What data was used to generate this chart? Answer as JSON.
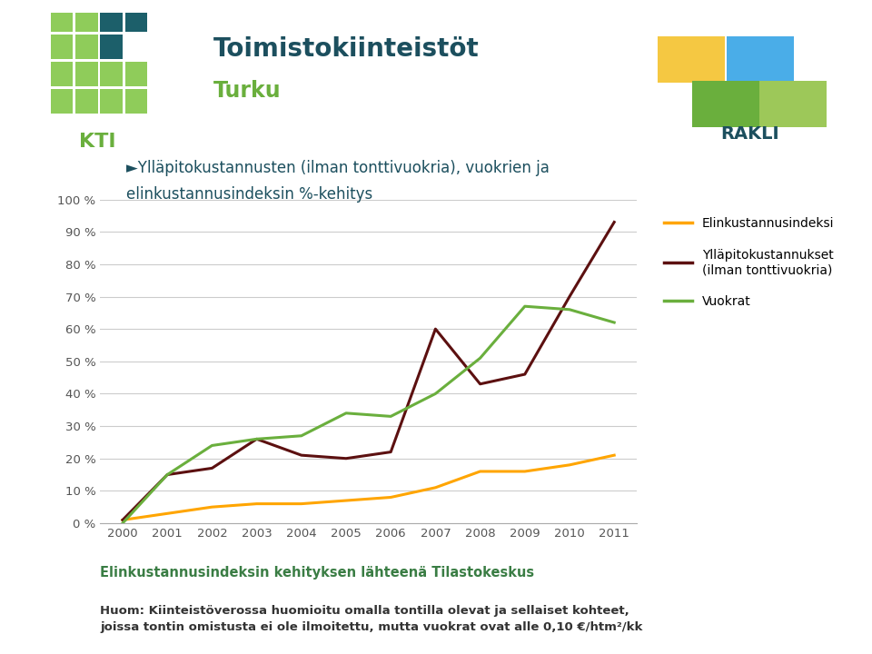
{
  "title1": "Toimistokiinteistöt",
  "title2": "Turku",
  "chart_title_line1": "►Ylläpitokustannusten (ilman tonttivuokria), vuokrien ja",
  "chart_title_line2": "elinkustannusindeksin %-kehitys",
  "years": [
    2000,
    2001,
    2002,
    2003,
    2004,
    2005,
    2006,
    2007,
    2008,
    2009,
    2010,
    2011
  ],
  "elinkustannusindeksi": [
    1,
    3,
    5,
    6,
    6,
    7,
    8,
    11,
    16,
    16,
    18,
    21
  ],
  "yllapitokustannukset": [
    1,
    15,
    17,
    26,
    21,
    20,
    22,
    60,
    43,
    46,
    70,
    93
  ],
  "vuokrat": [
    0,
    15,
    24,
    26,
    27,
    34,
    33,
    40,
    51,
    67,
    66,
    62
  ],
  "color_elinkustannus": "#FFA500",
  "color_yllapito": "#5C1010",
  "color_vuokrat": "#6AAF3D",
  "ylabel_ticks": [
    0,
    10,
    20,
    30,
    40,
    50,
    60,
    70,
    80,
    90,
    100
  ],
  "background_color": "#FFFFFF",
  "sidebar_color": "#3A7D44",
  "footer_green_text": "Elinkustannusindeksin kehityksen lähteenä Tilastokeskus",
  "footer_black_text": "Huom: Kiinteistöverossa huomioitu omalla tontilla olevat ja sellaiset kohteet,\njoissa tontin omistusta ei ole ilmoitettu, mutta vuokrat ovat alle 0,10 €/htm²/kk",
  "legend_elinkustannus": "Elinkustannusindeksi",
  "legend_yllapito": "Ylläpitokustannukset\n(ilman tonttivuokria)",
  "legend_vuokrat": "Vuokrat",
  "title1_color": "#1C4F5E",
  "title2_color": "#6AAF3D",
  "chart_title_color": "#1C4F5E",
  "footer_green_color": "#3A7D44",
  "footer_black_color": "#333333",
  "grid_color": "#CCCCCC",
  "tick_color": "#555555",
  "kti_color": "#6AAF3D"
}
